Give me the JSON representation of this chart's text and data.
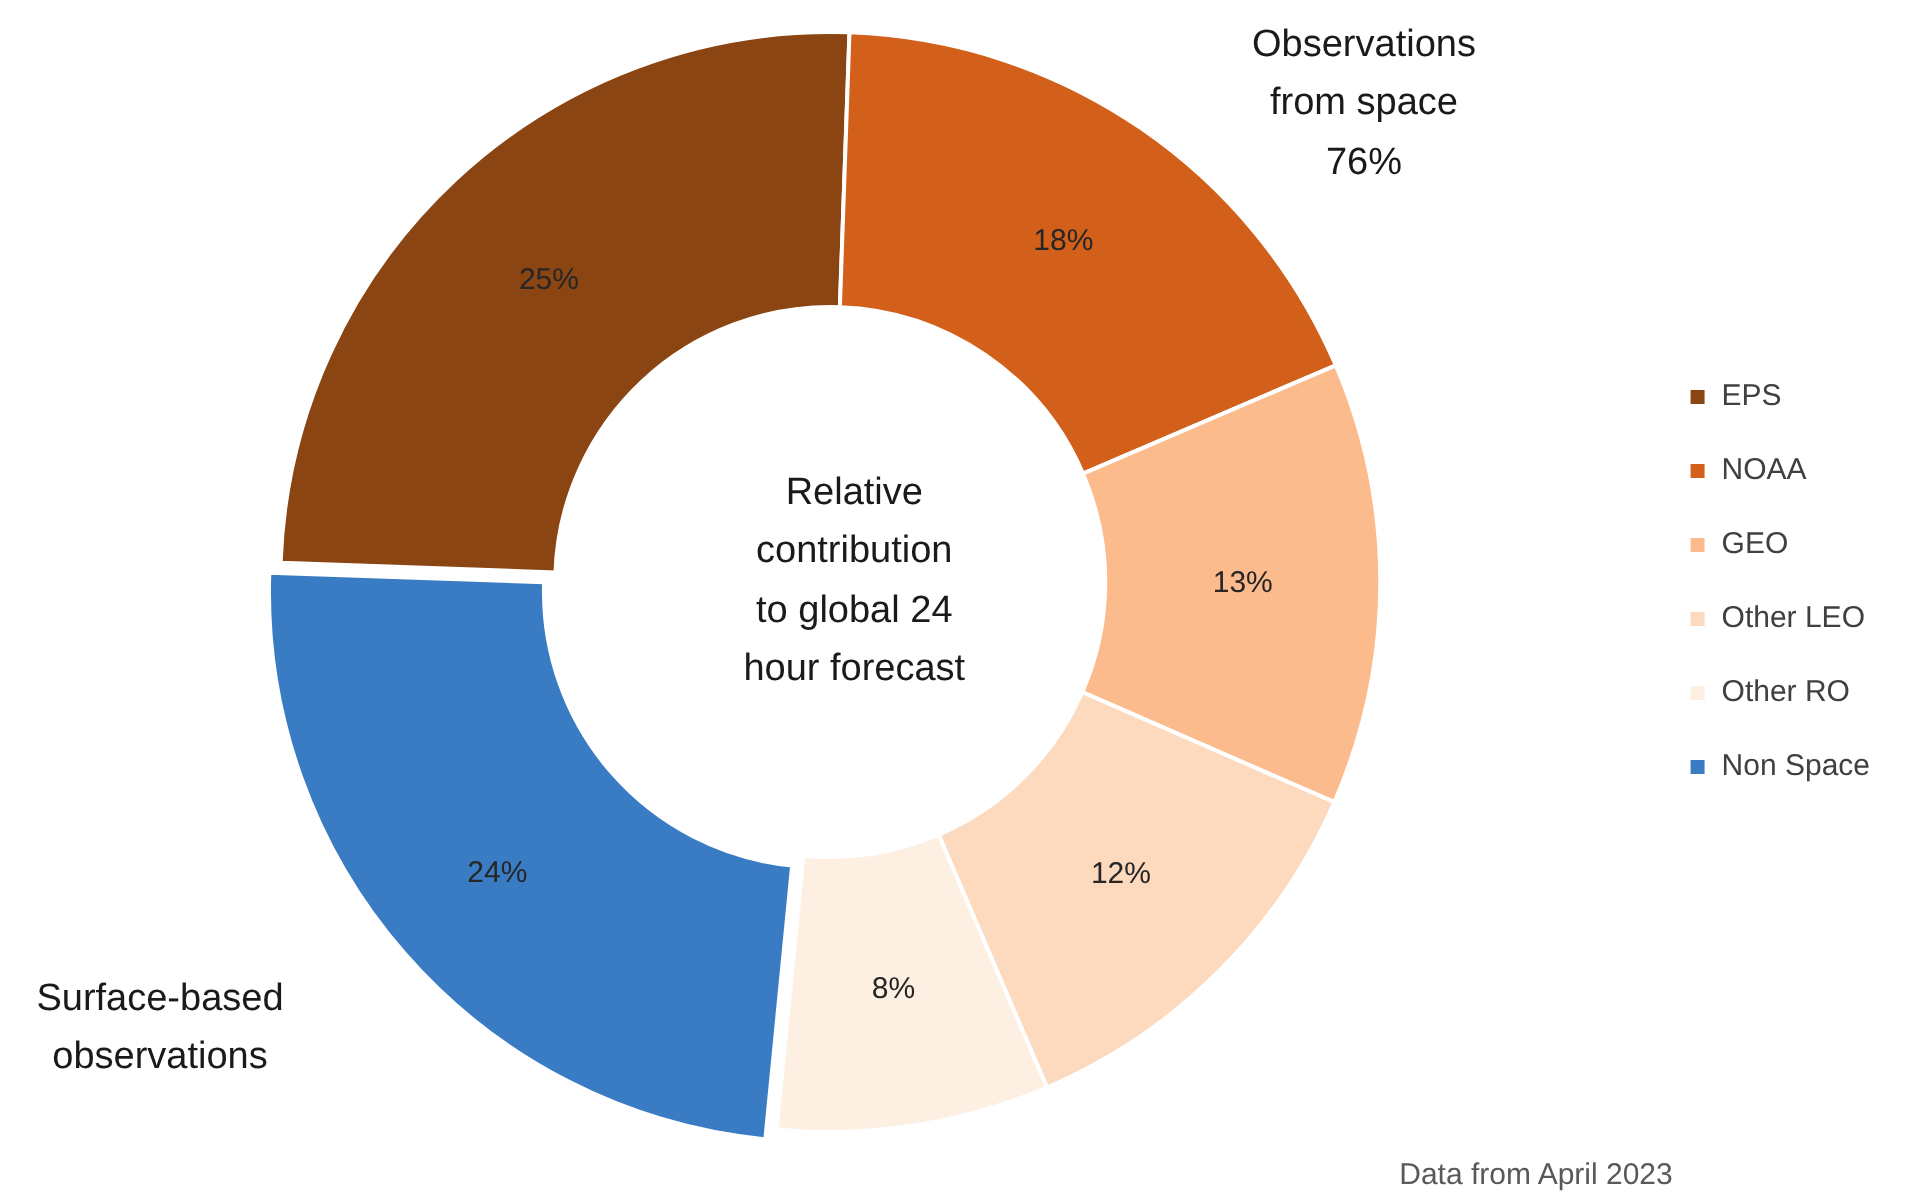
{
  "chart_data": {
    "type": "donut",
    "title": "Relative contribution to global 24 hour forecast",
    "categories": [
      "EPS",
      "NOAA",
      "GEO",
      "Other LEO",
      "Other RO",
      "Non Space"
    ],
    "values": [
      25,
      18,
      13,
      12,
      8,
      24
    ],
    "colors": [
      "#8b4513",
      "#d2601a",
      "#fbbb8c",
      "#fdd9bd",
      "#fdf0e2",
      "#3a7cc4"
    ],
    "value_labels": [
      "25%",
      "18%",
      "13%",
      "12%",
      "8%",
      "24%"
    ],
    "legend": "right",
    "annotations": [
      "Observations from space 76%",
      "Surface-based observations",
      "Data from April 2023"
    ]
  }
}
